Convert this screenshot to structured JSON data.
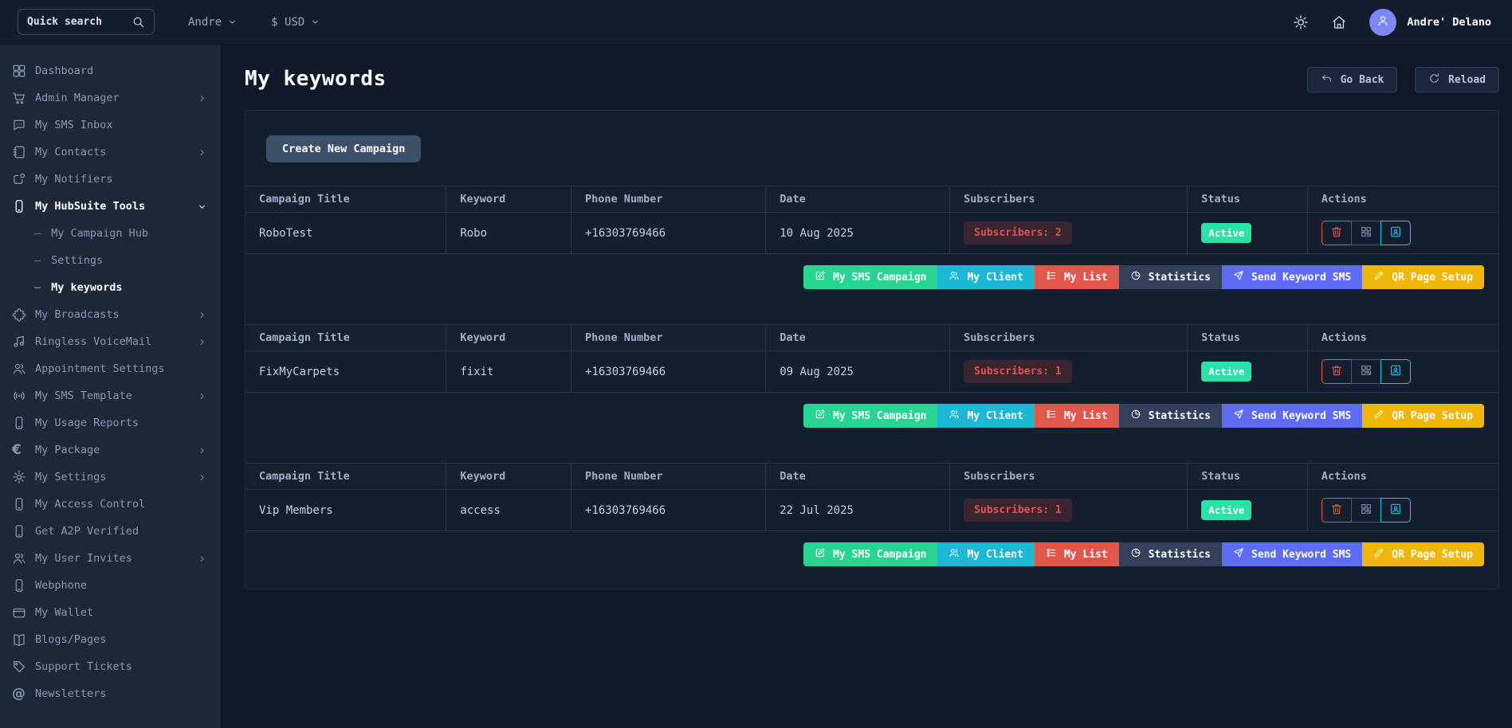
{
  "topbar": {
    "search_placeholder": "Quick search",
    "account_menu": "Andre",
    "currency_menu": "$ USD",
    "user_name": "Andre' Delano"
  },
  "page": {
    "title": "My keywords",
    "go_back_label": "Go Back",
    "reload_label": "Reload",
    "create_campaign_label": "Create New Campaign"
  },
  "sidebar": {
    "items": [
      {
        "label": "Dashboard",
        "icon": "grid-icon"
      },
      {
        "label": "Admin Manager",
        "icon": "cart-icon",
        "expandable": true
      },
      {
        "label": "My SMS Inbox",
        "icon": "chat-icon"
      },
      {
        "label": "My Contacts",
        "icon": "contacts-icon",
        "expandable": true
      },
      {
        "label": "My Notifiers",
        "icon": "notifier-icon"
      },
      {
        "label": "My HubSuite Tools",
        "icon": "phone-icon",
        "expandable": true,
        "expanded": true,
        "active": true,
        "children": [
          {
            "label": "My Campaign Hub"
          },
          {
            "label": "Settings"
          },
          {
            "label": "My keywords",
            "active": true
          }
        ]
      },
      {
        "label": "My Broadcasts",
        "icon": "puzzle-icon",
        "expandable": true
      },
      {
        "label": "Ringless VoiceMail",
        "icon": "music-icon",
        "expandable": true
      },
      {
        "label": "Appointment Settings",
        "icon": "users-icon"
      },
      {
        "label": "My SMS Template",
        "icon": "broadcast-icon",
        "expandable": true
      },
      {
        "label": "My Usage Reports",
        "icon": "phone-icon"
      },
      {
        "label": "My Package",
        "icon": "euro-icon",
        "expandable": true
      },
      {
        "label": "My Settings",
        "icon": "gear-icon",
        "expandable": true
      },
      {
        "label": "My Access Control",
        "icon": "phone-icon"
      },
      {
        "label": "Get A2P Verified",
        "icon": "phone-icon"
      },
      {
        "label": "My User Invites",
        "icon": "users-icon",
        "expandable": true
      },
      {
        "label": "Webphone",
        "icon": "phone-icon"
      },
      {
        "label": "My Wallet",
        "icon": "wallet-icon"
      },
      {
        "label": "Blogs/Pages",
        "icon": "book-icon"
      },
      {
        "label": "Support Tickets",
        "icon": "ticket-icon"
      },
      {
        "label": "Newsletters",
        "icon": "at-icon"
      }
    ]
  },
  "keywords_table": {
    "headers": [
      "Campaign Title",
      "Keyword",
      "Phone Number",
      "Date",
      "Subscribers",
      "Status",
      "Actions"
    ],
    "rows": [
      {
        "campaign_title": "RoboTest",
        "keyword": "Robo",
        "phone_number": "+16303769466",
        "date": "10 Aug 2025",
        "subscribers_badge": "Subscribers: 2",
        "status": "Active"
      },
      {
        "campaign_title": "FixMyCarpets",
        "keyword": "fixit",
        "phone_number": "+16303769466",
        "date": "09 Aug 2025",
        "subscribers_badge": "Subscribers: 1",
        "status": "Active"
      },
      {
        "campaign_title": "Vip Members",
        "keyword": "access",
        "phone_number": "+16303769466",
        "date": "22 Jul 2025",
        "subscribers_badge": "Subscribers: 1",
        "status": "Active"
      }
    ],
    "row_icon_actions": [
      {
        "name": "delete-button",
        "icon": "trash-icon",
        "border_color": "#e2574b",
        "icon_color": "#e2574b"
      },
      {
        "name": "qr-code-button",
        "icon": "qr-code-icon",
        "border_color": "#44597a",
        "icon_color": "#7b90ad"
      },
      {
        "name": "subscriber-list-button",
        "icon": "contact-card-icon",
        "border_color": "#1fc2e0",
        "icon_color": "#1fc2e0"
      }
    ],
    "row_buttons": [
      {
        "label": "My SMS Campaign",
        "icon": "edit-square-icon",
        "color": "#29d492"
      },
      {
        "label": "My Client",
        "icon": "users-icon",
        "color": "#1cb8d6"
      },
      {
        "label": "My List",
        "icon": "list-icon",
        "color": "#e2574b"
      },
      {
        "label": "Statistics",
        "icon": "pie-chart-icon",
        "color": "#32405a"
      },
      {
        "label": "Send Keyword SMS",
        "icon": "send-icon",
        "color": "#5e6cf4"
      },
      {
        "label": "QR Page Setup",
        "icon": "pencil-icon",
        "color": "#f0b60a"
      }
    ]
  }
}
